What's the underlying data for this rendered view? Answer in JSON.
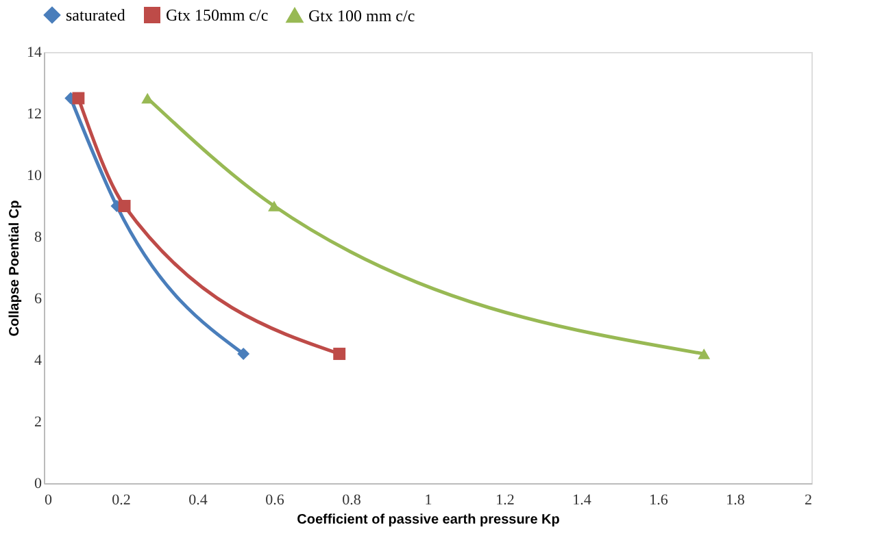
{
  "chart_data": {
    "type": "line",
    "xlabel": "Coefficient of passive earth pressure Kp",
    "ylabel": "Collapse Poential Cp",
    "xlim": [
      0,
      2
    ],
    "xticks": [
      0,
      0.2,
      0.4,
      0.6,
      0.8,
      1,
      1.2,
      1.4,
      1.6,
      1.8,
      2
    ],
    "ylim": [
      0,
      14
    ],
    "yticks": [
      0,
      2,
      4,
      6,
      8,
      10,
      12,
      14
    ],
    "grid": false,
    "legend": "top",
    "series": [
      {
        "name": "saturated",
        "color": "#4a7ebb",
        "marker": "diamond",
        "x": [
          0.07,
          0.19,
          0.52
        ],
        "values": [
          12.5,
          9,
          4.2
        ]
      },
      {
        "name": "Gtx 150mm c/c",
        "color": "#be4b48",
        "marker": "square",
        "x": [
          0.09,
          0.21,
          0.77
        ],
        "values": [
          12.5,
          9,
          4.2
        ]
      },
      {
        "name": "Gtx 100 mm c/c",
        "color": "#98b954",
        "marker": "triangle",
        "x": [
          0.27,
          0.6,
          1.72
        ],
        "values": [
          12.5,
          9,
          4.2
        ]
      }
    ]
  }
}
